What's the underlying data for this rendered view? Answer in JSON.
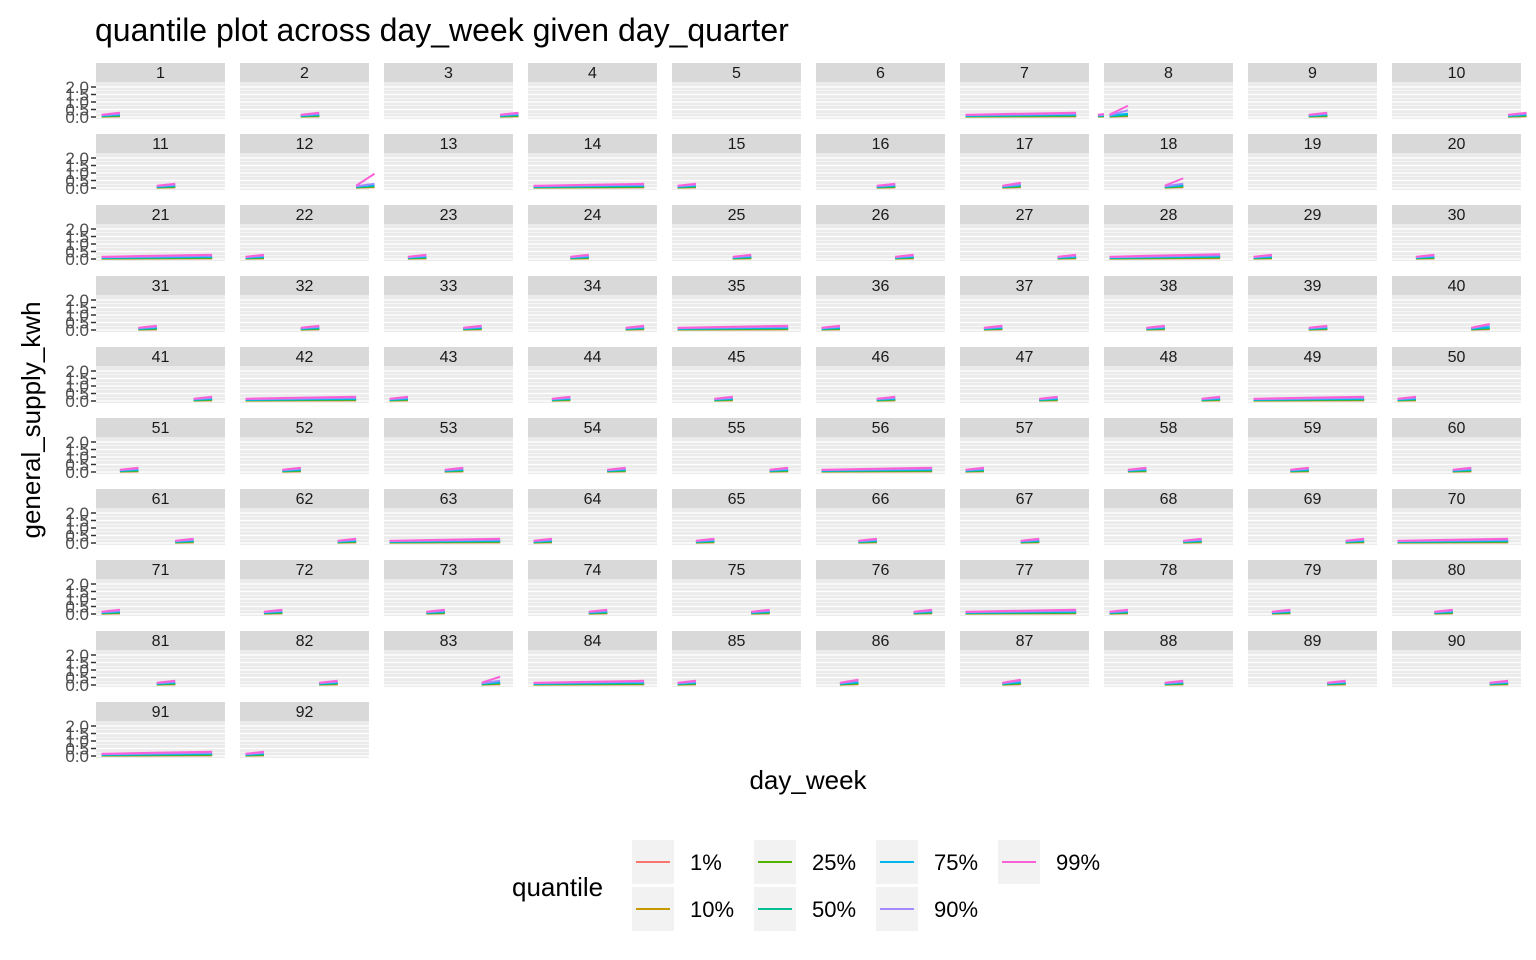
{
  "chart_data": {
    "type": "line",
    "title": "quantile plot across day_week given day_quarter",
    "xlabel": "day_week",
    "ylabel": "general_supply_kwh",
    "y_ticks": [
      "0.0",
      "0.5",
      "1.0",
      "1.5",
      "2.0"
    ],
    "ylim": [
      0,
      2.2
    ],
    "facet_by": "day_quarter",
    "panels": [
      "1",
      "2",
      "3",
      "4",
      "5",
      "6",
      "7",
      "8",
      "9",
      "10",
      "11",
      "12",
      "13",
      "14",
      "15",
      "16",
      "17",
      "18",
      "19",
      "20",
      "21",
      "22",
      "23",
      "24",
      "25",
      "26",
      "27",
      "28",
      "29",
      "30",
      "31",
      "32",
      "33",
      "34",
      "35",
      "36",
      "37",
      "38",
      "39",
      "40",
      "41",
      "42",
      "43",
      "44",
      "45",
      "46",
      "47",
      "48",
      "49",
      "50",
      "51",
      "52",
      "53",
      "54",
      "55",
      "56",
      "57",
      "58",
      "59",
      "60",
      "61",
      "62",
      "63",
      "64",
      "65",
      "66",
      "67",
      "68",
      "69",
      "70",
      "71",
      "72",
      "73",
      "74",
      "75",
      "76",
      "77",
      "78",
      "79",
      "80",
      "81",
      "82",
      "83",
      "84",
      "85",
      "86",
      "87",
      "88",
      "89",
      "90",
      "91",
      "92"
    ],
    "panel_segments": [
      [
        0.8,
        1.8
      ],
      [
        3.8,
        4.8
      ],
      [
        6.8,
        7.8
      ],
      [
        9.8,
        10.8
      ],
      [
        12.8,
        13.8
      ],
      [
        15.8,
        16.8
      ],
      [
        0.8,
        6.8
      ],
      [
        0.8,
        1.8
      ],
      [
        3.8,
        4.8
      ],
      [
        6.8,
        7.8
      ],
      [
        3.8,
        4.8
      ],
      [
        6.8,
        7.8
      ],
      [
        9.8,
        10.8
      ],
      [
        0.8,
        6.8
      ],
      [
        0.8,
        1.8
      ],
      [
        3.8,
        4.8
      ],
      [
        2.8,
        3.8
      ],
      [
        3.8,
        4.8
      ],
      [
        9.8,
        10.8
      ],
      [
        12.8,
        13.8
      ],
      [
        0.8,
        6.8
      ],
      [
        0.8,
        1.8
      ],
      [
        1.8,
        2.8
      ],
      [
        2.8,
        3.8
      ],
      [
        3.8,
        4.8
      ],
      [
        4.8,
        5.8
      ],
      [
        5.8,
        6.8
      ],
      [
        0.8,
        6.8
      ],
      [
        0.8,
        1.8
      ],
      [
        1.8,
        2.8
      ],
      [
        2.8,
        3.8
      ],
      [
        3.8,
        4.8
      ],
      [
        4.8,
        5.8
      ],
      [
        5.8,
        6.8
      ],
      [
        0.8,
        6.8
      ],
      [
        0.8,
        1.8
      ],
      [
        1.8,
        2.8
      ],
      [
        2.8,
        3.8
      ],
      [
        3.8,
        4.8
      ],
      [
        4.8,
        5.8
      ],
      [
        5.8,
        6.8
      ],
      [
        0.8,
        6.8
      ],
      [
        0.8,
        1.8
      ],
      [
        1.8,
        2.8
      ],
      [
        2.8,
        3.8
      ],
      [
        3.8,
        4.8
      ],
      [
        4.8,
        5.8
      ],
      [
        5.8,
        6.8
      ],
      [
        0.8,
        6.8
      ],
      [
        0.8,
        1.8
      ],
      [
        1.8,
        2.8
      ],
      [
        2.8,
        3.8
      ],
      [
        3.8,
        4.8
      ],
      [
        4.8,
        5.8
      ],
      [
        5.8,
        6.8
      ],
      [
        0.8,
        6.8
      ],
      [
        0.8,
        1.8
      ],
      [
        1.8,
        2.8
      ],
      [
        2.8,
        3.8
      ],
      [
        3.8,
        4.8
      ],
      [
        4.8,
        5.8
      ],
      [
        5.8,
        6.8
      ],
      [
        0.8,
        6.8
      ],
      [
        0.8,
        1.8
      ],
      [
        1.8,
        2.8
      ],
      [
        2.8,
        3.8
      ],
      [
        3.8,
        4.8
      ],
      [
        4.8,
        5.8
      ],
      [
        5.8,
        6.8
      ],
      [
        0.8,
        6.8
      ],
      [
        0.8,
        1.8
      ],
      [
        1.8,
        2.8
      ],
      [
        2.8,
        3.8
      ],
      [
        3.8,
        4.8
      ],
      [
        4.8,
        5.8
      ],
      [
        5.8,
        6.8
      ],
      [
        0.8,
        6.8
      ],
      [
        0.8,
        1.8
      ],
      [
        1.8,
        2.8
      ],
      [
        2.8,
        3.8
      ],
      [
        3.8,
        4.8
      ],
      [
        4.8,
        5.8
      ],
      [
        5.8,
        6.8
      ],
      [
        0.8,
        6.8
      ],
      [
        0.8,
        1.8
      ],
      [
        1.8,
        2.8
      ],
      [
        2.8,
        3.8
      ],
      [
        3.8,
        4.8
      ],
      [
        4.8,
        5.8
      ],
      [
        5.8,
        6.8
      ],
      [
        0.8,
        6.8
      ],
      [
        0.8,
        1.8
      ]
    ],
    "panel_values": {
      "8": [
        0.05,
        0.08,
        0.1,
        0.14,
        0.22,
        0.45,
        0.75,
        1.55
      ],
      "12": [
        0.05,
        0.08,
        0.1,
        0.14,
        0.2,
        0.28,
        0.95,
        1.95
      ],
      "17": [
        0.05,
        0.08,
        0.1,
        0.14,
        0.2,
        0.25,
        0.35,
        1.4
      ],
      "18": [
        0.05,
        0.08,
        0.1,
        0.14,
        0.2,
        0.28,
        0.65,
        2.0
      ],
      "28": [
        0.05,
        0.08,
        0.1,
        0.15,
        0.2,
        0.25,
        0.32,
        0.45
      ],
      "40": [
        0.05,
        0.08,
        0.1,
        0.14,
        0.2,
        0.35,
        0.4,
        1.25
      ],
      "83": [
        0.05,
        0.08,
        0.1,
        0.14,
        0.2,
        0.28,
        0.55,
        1.65
      ],
      "86": [
        0.05,
        0.08,
        0.1,
        0.14,
        0.2,
        0.28,
        0.35,
        1.5
      ],
      "87": [
        0.05,
        0.08,
        0.1,
        0.14,
        0.2,
        0.28,
        0.35,
        1.55
      ]
    },
    "default_values": [
      0.04,
      0.06,
      0.08,
      0.12,
      0.16,
      0.22,
      0.28,
      0.36
    ],
    "legend": {
      "title": "quantile",
      "position": "bottom",
      "entries": [
        {
          "label": "1%",
          "color": "#F8766D"
        },
        {
          "label": "10%",
          "color": "#C49A00"
        },
        {
          "label": "25%",
          "color": "#53B400"
        },
        {
          "label": "50%",
          "color": "#00C094"
        },
        {
          "label": "75%",
          "color": "#00B6EB"
        },
        {
          "label": "90%",
          "color": "#A58AFF"
        },
        {
          "label": "99%",
          "color": "#FB61D7"
        }
      ]
    }
  }
}
